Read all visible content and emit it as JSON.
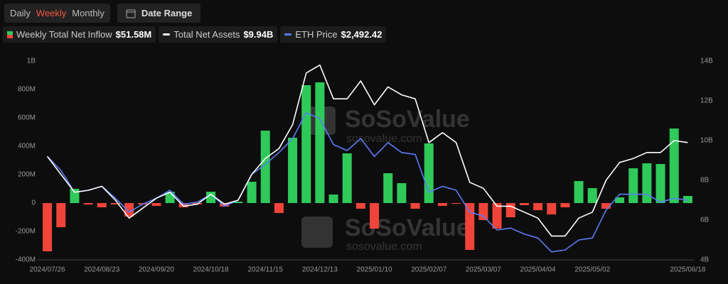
{
  "toolbar": {
    "periods": [
      "Daily",
      "Weekly",
      "Monthly"
    ],
    "active_period": 1,
    "date_range": "Date Range"
  },
  "chart_data": {
    "type": "bar-line",
    "categories": [
      "2024/07/26",
      null,
      null,
      null,
      "2024/08/23",
      null,
      null,
      null,
      "2024/09/20",
      null,
      null,
      null,
      "2024/10/18",
      null,
      null,
      null,
      "2024/11/15",
      null,
      null,
      null,
      "2024/12/13",
      null,
      null,
      null,
      "2025/01/10",
      null,
      null,
      null,
      "2025/02/07",
      null,
      null,
      null,
      "2025/03/07",
      null,
      null,
      null,
      "2025/04/04",
      null,
      null,
      null,
      "2025/05/02",
      null,
      null,
      null,
      null,
      null,
      null,
      "2025/06/18"
    ],
    "series": [
      {
        "name": "Weekly Total Net Inflow",
        "headline": "$51.58M",
        "type": "bar",
        "color": "#2fc95a",
        "negative_color": "#f0443a",
        "values": [
          -340000000,
          -170000000,
          100000000,
          -10000000,
          -30000000,
          -10000000,
          -95000000,
          -10000000,
          -20000000,
          80000000,
          -30000000,
          -10000000,
          80000000,
          -25000000,
          10000000,
          150000000,
          510000000,
          -70000000,
          460000000,
          830000000,
          850000000,
          60000000,
          350000000,
          -40000000,
          -180000000,
          210000000,
          140000000,
          -40000000,
          420000000,
          -20000000,
          -5000000,
          -330000000,
          -120000000,
          -180000000,
          -100000000,
          -15000000,
          -50000000,
          -80000000,
          -30000000,
          155000000,
          105000000,
          -40000000,
          40000000,
          245000000,
          280000000,
          275000000,
          525000000,
          50000000
        ]
      },
      {
        "name": "Total Net Assets",
        "headline": "$9.94B",
        "type": "line",
        "axis": "y2",
        "color": "#ffffff",
        "values": [
          9200000000,
          8300000000,
          7400000000,
          7500000000,
          7700000000,
          7000000000,
          6100000000,
          6600000000,
          7100000000,
          7400000000,
          6700000000,
          6800000000,
          7300000000,
          6800000000,
          7000000000,
          8300000000,
          9100000000,
          9600000000,
          10800000000,
          13400000000,
          13800000000,
          12100000000,
          12100000000,
          13000000000,
          11800000000,
          12700000000,
          12300000000,
          12100000000,
          9900000000,
          10400000000,
          9900000000,
          7900000000,
          7600000000,
          6700000000,
          6700000000,
          6400000000,
          6100000000,
          5200000000,
          5200000000,
          6100000000,
          6400000000,
          8000000000,
          8900000000,
          9100000000,
          9400000000,
          9400000000,
          10000000000,
          9900000000
        ]
      },
      {
        "name": "ETH Price",
        "headline": "$2,492.42",
        "type": "line",
        "axis": "y2",
        "color": "#5b7cf5",
        "values": [
          9200000000,
          8500000000,
          7400000000,
          7500000000,
          7700000000,
          7100000000,
          6400000000,
          6800000000,
          7100000000,
          7500000000,
          6800000000,
          6900000000,
          7300000000,
          6700000000,
          7000000000,
          8300000000,
          8800000000,
          9400000000,
          10100000000,
          11400000000,
          11100000000,
          9800000000,
          9500000000,
          10100000000,
          9200000000,
          9900000000,
          9400000000,
          9300000000,
          7400000000,
          7700000000,
          7500000000,
          6400000000,
          6200000000,
          5500000000,
          5600000000,
          5300000000,
          5100000000,
          4400000000,
          4500000000,
          5000000000,
          5100000000,
          6500000000,
          7300000000,
          7300000000,
          7300000000,
          6900000000,
          7100000000,
          7000000000
        ]
      }
    ],
    "ylim": [
      -400000000,
      1000000000
    ],
    "yticks": [
      {
        "value": -400000000,
        "label": "-400M"
      },
      {
        "value": -200000000,
        "label": "-200M"
      },
      0,
      {
        "value": 200000000,
        "label": "200M"
      },
      {
        "value": 400000000,
        "label": "400M"
      },
      {
        "value": 600000000,
        "label": "600M"
      },
      {
        "value": 800000000,
        "label": "800M"
      },
      {
        "value": 1000000000,
        "label": "1B"
      }
    ],
    "y2lim": [
      4000000000,
      14000000000
    ],
    "y2ticks": [
      {
        "value": 4000000000,
        "label": "4B"
      },
      {
        "value": 6000000000,
        "label": "6B"
      },
      {
        "value": 8000000000,
        "label": "8B"
      },
      {
        "value": 10000000000,
        "label": "10B"
      },
      {
        "value": 12000000000,
        "label": "12B"
      },
      {
        "value": 14000000000,
        "label": "14B"
      }
    ],
    "grid": false,
    "watermark": {
      "brand": "SoSoValue",
      "site": "sosovalue.com"
    }
  }
}
